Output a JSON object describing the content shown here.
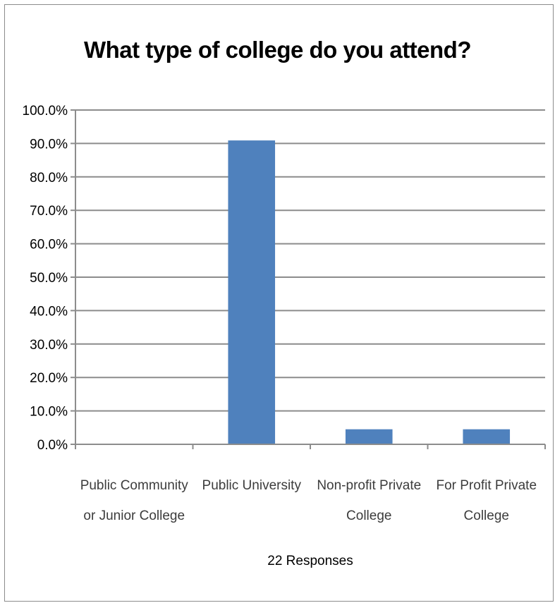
{
  "chart_data": {
    "type": "bar",
    "title": "What type of college do you attend?",
    "categories": [
      [
        "Public Community",
        "or Junior College"
      ],
      [
        "Public University"
      ],
      [
        "Non-profit Private",
        "College"
      ],
      [
        "For Profit Private",
        "College"
      ]
    ],
    "values": [
      0.0,
      90.9,
      4.5,
      4.5
    ],
    "y_ticks": [
      "0.0%",
      "10.0%",
      "20.0%",
      "30.0%",
      "40.0%",
      "50.0%",
      "60.0%",
      "70.0%",
      "80.0%",
      "90.0%",
      "100.0%"
    ],
    "ylim": [
      0,
      100
    ],
    "xlabel": "22 Responses",
    "ylabel": "",
    "grid": true,
    "colors": {
      "bar": "#4f81bd",
      "grid": "#8c8c8c",
      "axis": "#8c8c8c"
    }
  }
}
